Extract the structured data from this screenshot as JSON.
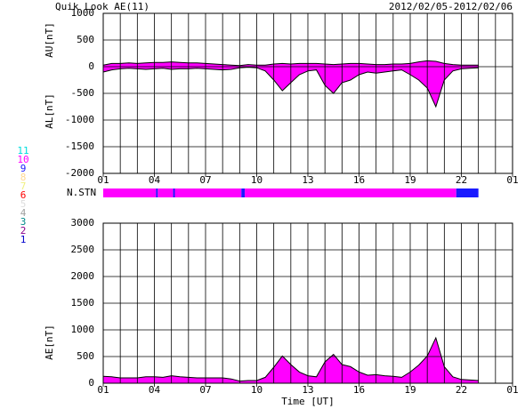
{
  "title": "Quik Look AE(11)",
  "date_range": "2012/02/05-2012/02/06",
  "chart_data": [
    {
      "type": "area",
      "x": [
        0,
        0.5,
        1,
        1.5,
        2,
        2.5,
        3,
        3.5,
        4,
        4.5,
        5,
        5.5,
        6,
        6.5,
        7,
        7.5,
        8,
        8.5,
        9,
        9.5,
        10,
        10.5,
        11,
        11.5,
        12,
        12.5,
        13,
        13.5,
        14,
        14.5,
        15,
        15.5,
        16,
        16.5,
        17,
        17.5,
        18,
        18.5,
        19,
        19.5,
        20,
        20.5,
        21,
        21.5,
        22
      ],
      "series": [
        {
          "name": "AU[nT]",
          "color": "#ff00ff",
          "values": [
            30,
            60,
            60,
            70,
            60,
            70,
            80,
            80,
            90,
            80,
            70,
            70,
            60,
            50,
            40,
            30,
            20,
            40,
            30,
            30,
            50,
            60,
            50,
            60,
            60,
            60,
            50,
            40,
            50,
            60,
            60,
            50,
            40,
            40,
            50,
            50,
            60,
            90,
            110,
            100,
            60,
            40,
            30,
            30,
            30
          ]
        },
        {
          "name": "AL[nT]",
          "color": "#ff00ff",
          "values": [
            -100,
            -60,
            -40,
            -30,
            -40,
            -50,
            -40,
            -30,
            -50,
            -40,
            -40,
            -30,
            -40,
            -50,
            -60,
            -50,
            -20,
            -10,
            -20,
            -80,
            -250,
            -450,
            -300,
            -150,
            -80,
            -60,
            -350,
            -500,
            -300,
            -250,
            -150,
            -100,
            -120,
            -100,
            -80,
            -60,
            -150,
            -250,
            -400,
            -750,
            -250,
            -80,
            -40,
            -30,
            -20
          ]
        }
      ],
      "xlim": [
        0,
        24
      ],
      "xticks": [
        {
          "value": 0,
          "label": "01"
        },
        {
          "value": 3,
          "label": "04"
        },
        {
          "value": 6,
          "label": "07"
        },
        {
          "value": 9,
          "label": "10"
        },
        {
          "value": 12,
          "label": "13"
        },
        {
          "value": 15,
          "label": "16"
        },
        {
          "value": 18,
          "label": "19"
        },
        {
          "value": 21,
          "label": "22"
        },
        {
          "value": 24,
          "label": "01"
        }
      ],
      "xgrid_step": 1,
      "ylim": [
        -2000,
        1000
      ],
      "yticks": [
        -2000,
        -1500,
        -1000,
        -500,
        0,
        500,
        1000
      ],
      "grid": true
    },
    {
      "type": "station_bar",
      "label": "N.STN",
      "xlim": [
        0,
        24
      ],
      "segments": [
        {
          "start": 0,
          "end": 3.1,
          "count": 10
        },
        {
          "start": 3.1,
          "end": 3.2,
          "count": 9
        },
        {
          "start": 3.2,
          "end": 4.1,
          "count": 10
        },
        {
          "start": 4.1,
          "end": 4.2,
          "count": 9
        },
        {
          "start": 4.2,
          "end": 8.1,
          "count": 10
        },
        {
          "start": 8.1,
          "end": 8.3,
          "count": 9
        },
        {
          "start": 8.3,
          "end": 20.7,
          "count": 10
        },
        {
          "start": 20.7,
          "end": 22,
          "count": 9
        }
      ],
      "station_colors": [
        {
          "count": 11,
          "color": "#00dddd"
        },
        {
          "count": 10,
          "color": "#ff00ff"
        },
        {
          "count": 9,
          "color": "#1a1aff"
        },
        {
          "count": 8,
          "color": "#ffd890"
        },
        {
          "count": 7,
          "color": "#f0f080"
        },
        {
          "count": 6,
          "color": "#ff0000"
        },
        {
          "count": 5,
          "color": "#dddddd"
        },
        {
          "count": 4,
          "color": "#a0a0a0"
        },
        {
          "count": 3,
          "color": "#008b8b"
        },
        {
          "count": 2,
          "color": "#8b008b"
        },
        {
          "count": 1,
          "color": "#0000cc"
        }
      ]
    },
    {
      "type": "area",
      "x": [
        0,
        0.5,
        1,
        1.5,
        2,
        2.5,
        3,
        3.5,
        4,
        4.5,
        5,
        5.5,
        6,
        6.5,
        7,
        7.5,
        8,
        8.5,
        9,
        9.5,
        10,
        10.5,
        11,
        11.5,
        12,
        12.5,
        13,
        13.5,
        14,
        14.5,
        15,
        15.5,
        16,
        16.5,
        17,
        17.5,
        18,
        18.5,
        19,
        19.5,
        20,
        20.5,
        21,
        21.5,
        22
      ],
      "series": [
        {
          "name": "AE[nT]",
          "color": "#ff00ff",
          "values": [
            130,
            120,
            100,
            100,
            100,
            120,
            120,
            110,
            140,
            120,
            110,
            100,
            100,
            100,
            100,
            80,
            40,
            50,
            50,
            110,
            300,
            510,
            350,
            210,
            140,
            120,
            400,
            540,
            350,
            310,
            210,
            150,
            160,
            140,
            130,
            110,
            210,
            340,
            510,
            850,
            310,
            120,
            70,
            60,
            50
          ]
        }
      ],
      "xlim": [
        0,
        24
      ],
      "xticks": [
        {
          "value": 0,
          "label": "01"
        },
        {
          "value": 3,
          "label": "04"
        },
        {
          "value": 6,
          "label": "07"
        },
        {
          "value": 9,
          "label": "10"
        },
        {
          "value": 12,
          "label": "13"
        },
        {
          "value": 15,
          "label": "16"
        },
        {
          "value": 18,
          "label": "19"
        },
        {
          "value": 21,
          "label": "22"
        },
        {
          "value": 24,
          "label": "01"
        }
      ],
      "xgrid_step": 1,
      "xlabel": "Time [UT]",
      "ylim": [
        0,
        3000
      ],
      "yticks": [
        0,
        500,
        1000,
        1500,
        2000,
        2500,
        3000
      ],
      "grid": true
    }
  ]
}
